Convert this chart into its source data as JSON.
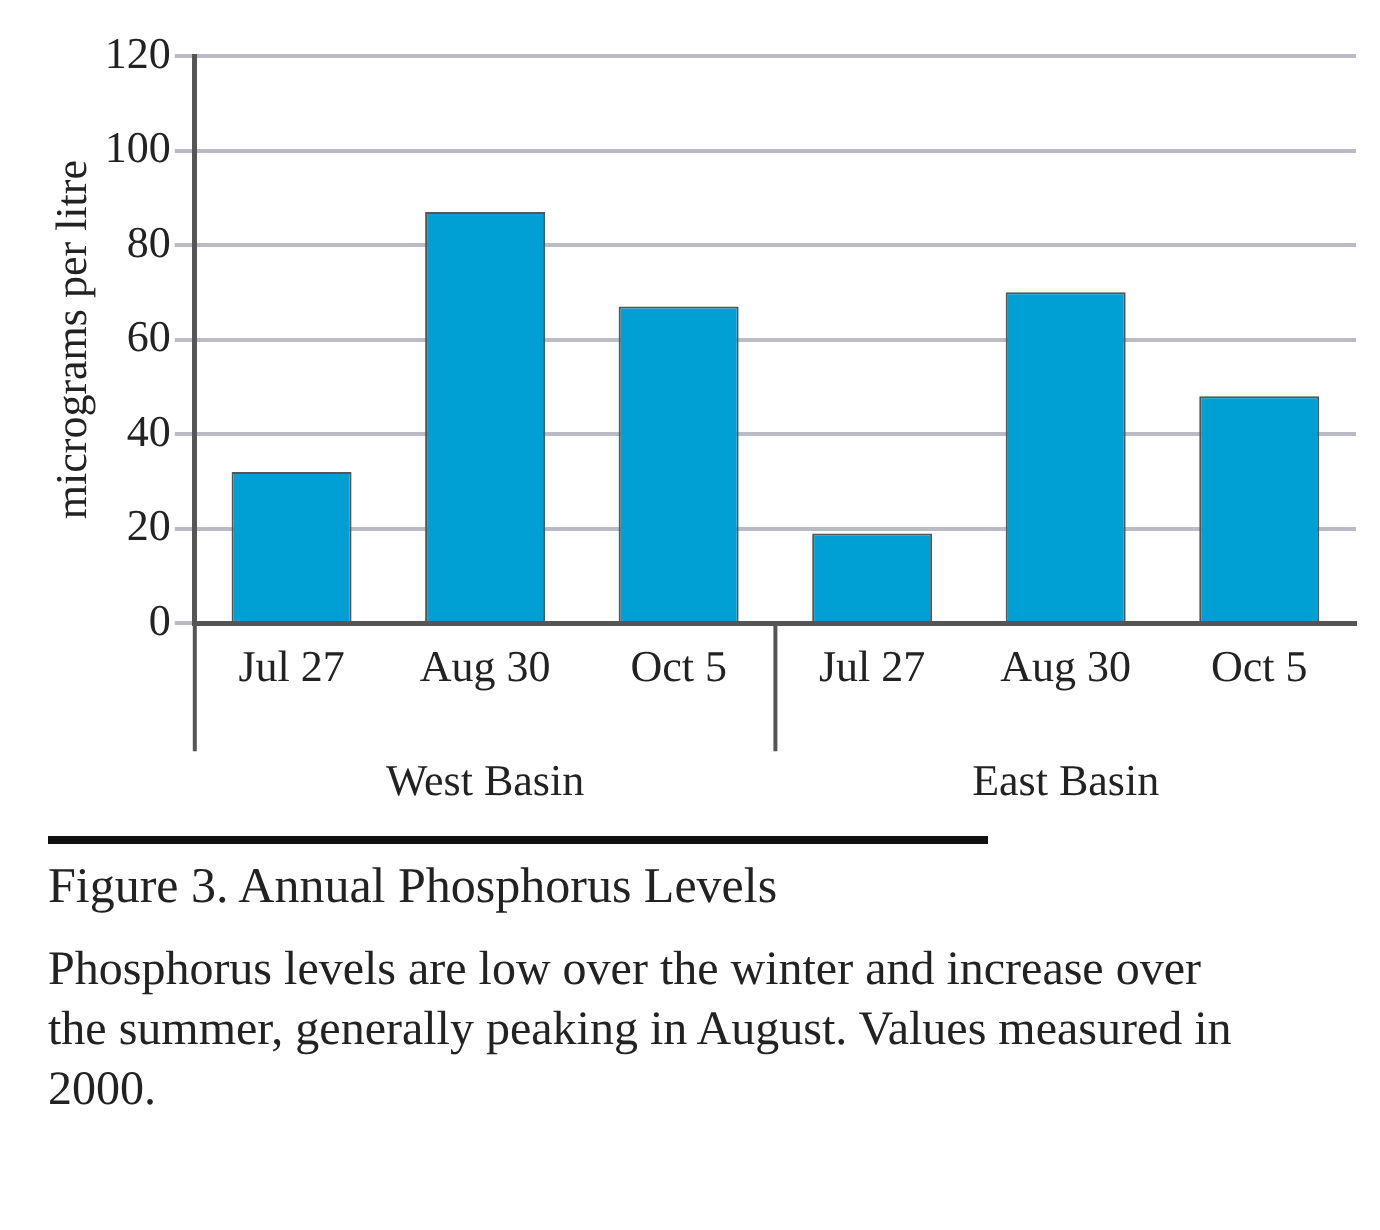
{
  "chart_data": {
    "type": "bar",
    "title": "Figure 3. Annual Phosphorus Levels",
    "ylabel": "micrograms per litre",
    "categories": [
      "Jul 27",
      "Aug 30",
      "Oct 5",
      "Jul 27",
      "Aug 30",
      "Oct 5"
    ],
    "values": [
      32,
      87,
      67,
      19,
      70,
      48
    ],
    "color": "#009fd4",
    "ylim": [
      0,
      120
    ],
    "yticks": [
      0,
      20,
      40,
      60,
      80,
      100,
      120
    ],
    "grid": "y",
    "annotations": [
      "West Basin",
      "East Basin",
      "Phosphorus levels are low over the winter and increase over the summer, generally peaking in August. Values measured in 2000."
    ]
  }
}
